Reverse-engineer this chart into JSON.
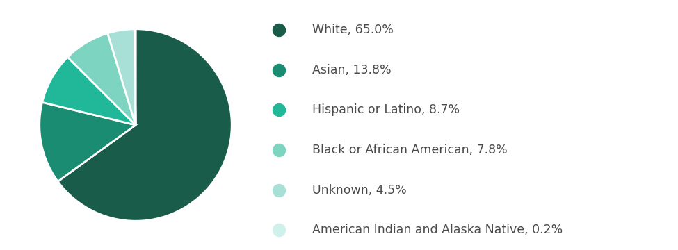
{
  "labels": [
    "White, 65.0%",
    "Asian, 13.8%",
    "Hispanic or Latino, 8.7%",
    "Black or African American, 7.8%",
    "Unknown, 4.5%",
    "American Indian and Alaska Native, 0.2%"
  ],
  "values": [
    65.0,
    13.8,
    8.7,
    7.8,
    4.5,
    0.2
  ],
  "colors": [
    "#1a5c4a",
    "#1a8c72",
    "#20b898",
    "#7dd4c0",
    "#a8e0d8",
    "#d0f0ec"
  ],
  "background_color": "#ffffff",
  "text_color": "#4a4a4a",
  "legend_fontsize": 12.5,
  "startangle": 90,
  "wedge_edge_color": "#ffffff"
}
